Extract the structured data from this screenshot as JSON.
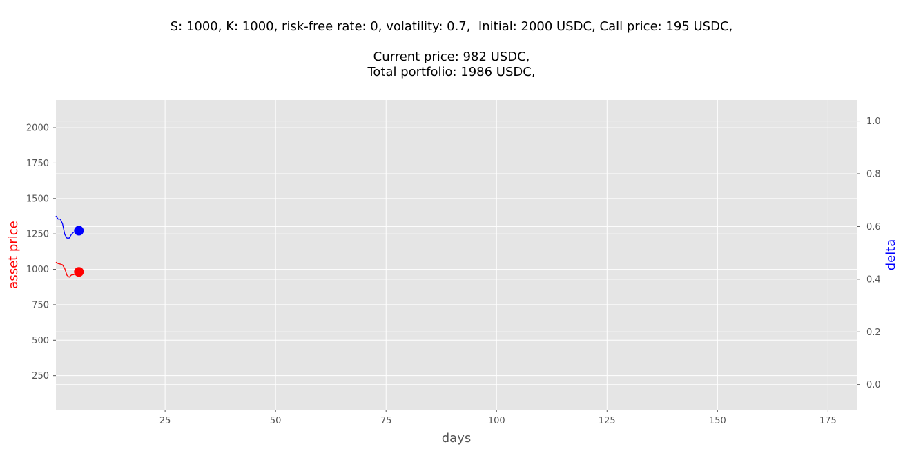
{
  "title": {
    "line1": "S: 1000, K: 1000, risk-free rate: 0, volatility: 0.7,  Initial: 2000 USDC, Call price: 195 USDC,",
    "line2": "Current price: 982 USDC,",
    "line3": "Total portfolio: 1986 USDC,"
  },
  "colors": {
    "asset_price": "#ff0000",
    "delta": "#0000ff",
    "plot_bg": "#e5e5e5",
    "grid": "#ffffff"
  },
  "chart_data": {
    "type": "line",
    "xlabel": "days",
    "ylabel_left": "asset price",
    "ylabel_right": "delta",
    "xlim": [
      0.3,
      181.5
    ],
    "ylim_left": [
      10,
      2195
    ],
    "ylim_right": [
      -0.095,
      1.08
    ],
    "xticks": [
      25,
      50,
      75,
      100,
      125,
      150,
      175
    ],
    "yticks_left": [
      250,
      500,
      750,
      1000,
      1250,
      1500,
      1750,
      2000
    ],
    "yticks_right": [
      0.0,
      0.2,
      0.4,
      0.6,
      0.8,
      1.0
    ],
    "grid": true,
    "series": [
      {
        "axis": "left",
        "color": "#ff0000",
        "x": [
          0.3,
          0.8,
          1.3,
          1.8,
          2.3,
          2.8,
          3.3,
          3.8,
          4.3,
          4.8,
          5.5
        ],
        "y": [
          1050,
          1040,
          1037,
          1031,
          1005,
          958,
          945,
          960,
          962,
          970,
          982
        ],
        "marker": {
          "x": 5.5,
          "y": 982
        }
      },
      {
        "axis": "right",
        "color": "#0000ff",
        "x": [
          0.3,
          0.8,
          1.3,
          1.8,
          2.3,
          2.8,
          3.3,
          3.8,
          4.3,
          4.8,
          5.5
        ],
        "y": [
          0.64,
          0.628,
          0.628,
          0.61,
          0.57,
          0.556,
          0.556,
          0.57,
          0.578,
          0.58,
          0.584
        ],
        "marker": {
          "x": 5.5,
          "y": 0.584
        }
      }
    ]
  }
}
